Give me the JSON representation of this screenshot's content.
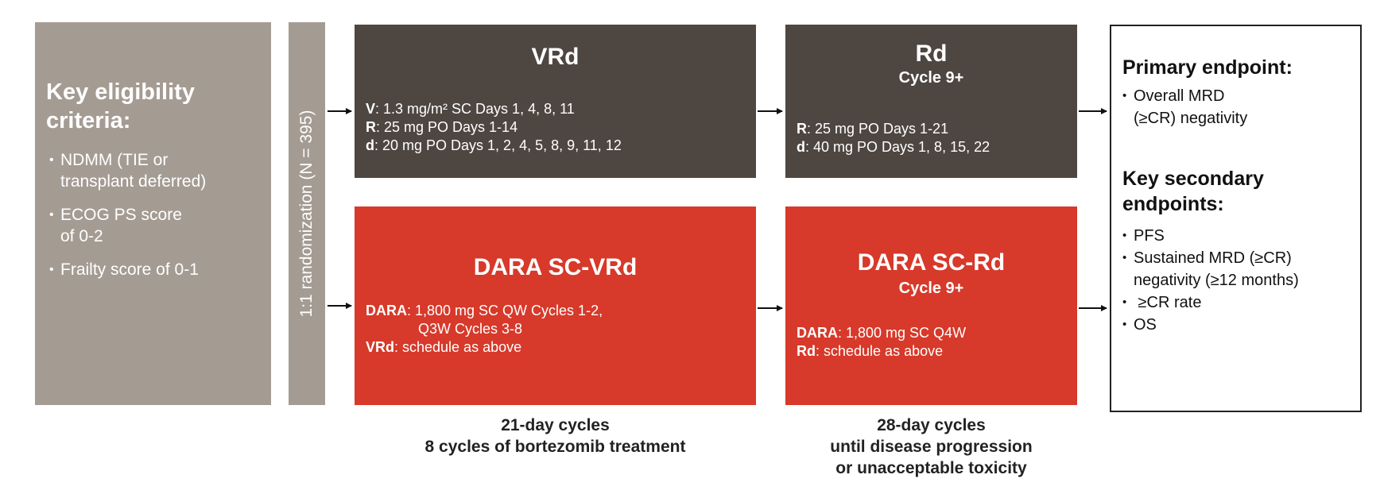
{
  "eligibility": {
    "title_line1": "Key eligibility",
    "title_line2": "criteria:",
    "items": [
      {
        "line1": "NDMM (TIE or",
        "line2": "transplant deferred)"
      },
      {
        "line1": "ECOG PS score",
        "line2": "of 0-2"
      },
      {
        "line1": "Frailty score of 0-1",
        "line2": ""
      }
    ]
  },
  "randomization": {
    "label": "1:1 randomization (N = 395)"
  },
  "vrd": {
    "title": "VRd",
    "lines": [
      {
        "key": "V",
        "text": ": 1.3 mg/m² SC Days 1, 4, 8, 11"
      },
      {
        "key": "R",
        "text": ": 25 mg PO Days 1-14"
      },
      {
        "key": "d",
        "text": ": 20 mg PO Days 1, 2, 4, 5, 8, 9, 11, 12"
      }
    ]
  },
  "rd": {
    "title": "Rd",
    "subtitle": "Cycle 9+",
    "lines": [
      {
        "key": "R",
        "text": ": 25 mg PO Days 1-21"
      },
      {
        "key": "d",
        "text": ": 40 mg PO Days 1, 8, 15, 22"
      }
    ]
  },
  "dara_vrd": {
    "title": "DARA SC-VRd",
    "line1_key": "DARA",
    "line1_text": ": 1,800 mg SC QW Cycles 1-2,",
    "line2_text": "Q3W Cycles 3-8",
    "line3_key": "VRd",
    "line3_text": ": schedule as above"
  },
  "dara_rd": {
    "title": "DARA SC-Rd",
    "subtitle": "Cycle 9+",
    "lines": [
      {
        "key": "DARA",
        "text": ": 1,800 mg SC Q4W"
      },
      {
        "key": "Rd",
        "text": ": schedule as above"
      }
    ]
  },
  "endpoints": {
    "primary_title": "Primary endpoint:",
    "primary_item_line1": "Overall MRD",
    "primary_item_line2": "(≥CR) negativity",
    "secondary_title_line1": "Key secondary",
    "secondary_title_line2": "endpoints:",
    "secondary_items": [
      {
        "line1": "PFS",
        "line2": ""
      },
      {
        "line1": "Sustained MRD (≥CR)",
        "line2": "negativity (≥12 months)"
      },
      {
        "line1": " ≥CR rate",
        "line2": ""
      },
      {
        "line1": "OS",
        "line2": ""
      }
    ]
  },
  "captions": {
    "cycles21_line1": "21-day cycles",
    "cycles21_line2": "8 cycles of bortezomib treatment",
    "cycles28_line1": "28-day cycles",
    "cycles28_line2": "until disease progression",
    "cycles28_line3": "or unacceptable toxicity"
  }
}
